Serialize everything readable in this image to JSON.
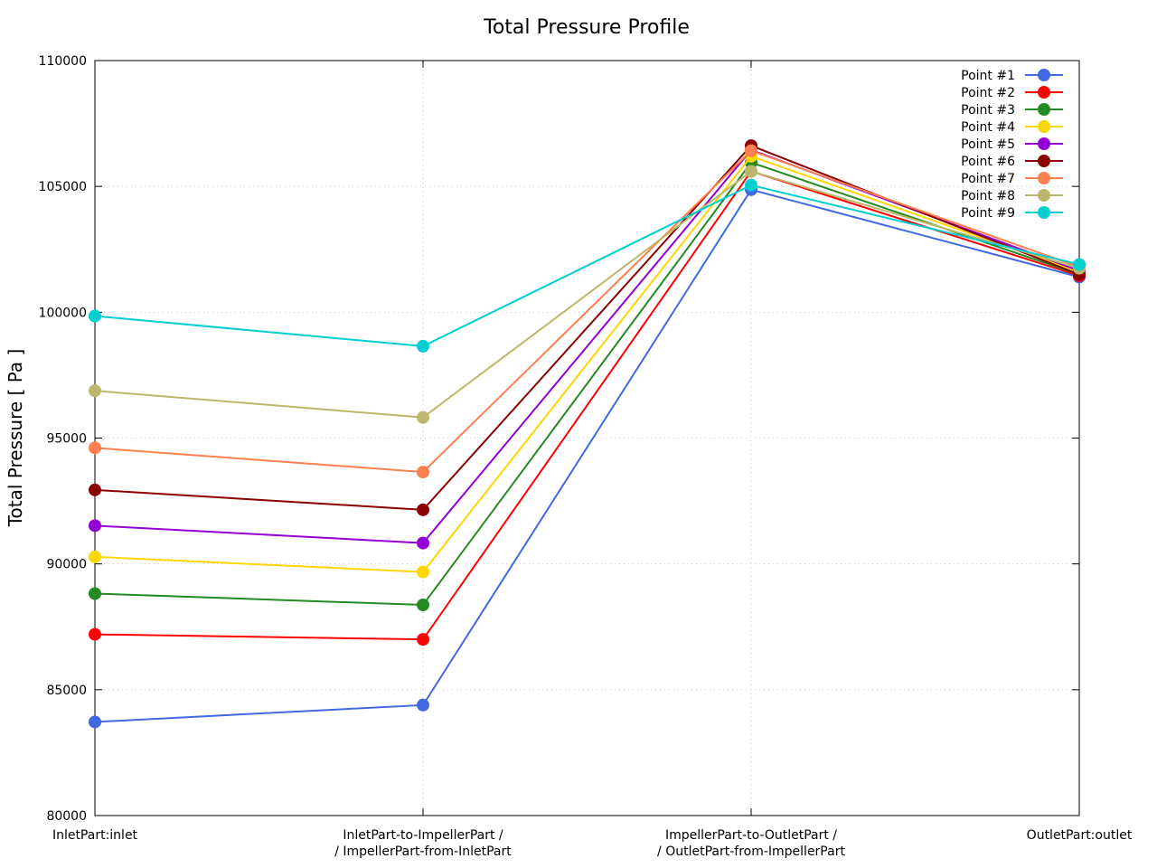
{
  "chart_data": {
    "type": "line",
    "title": "Total Pressure Profile",
    "xlabel": "",
    "ylabel": "Total Pressure [ Pa ]",
    "ylim": [
      80000,
      110000
    ],
    "yticks": [
      "80000",
      "85000",
      "90000",
      "95000",
      "100000",
      "105000",
      "110000"
    ],
    "grid": true,
    "legend_position": "top-right",
    "categories": [
      [
        "InletPart:inlet"
      ],
      [
        "InletPart-to-ImpellerPart /",
        "/ ImpellerPart-from-InletPart"
      ],
      [
        "ImpellerPart-to-OutletPart /",
        "/ OutletPart-from-ImpellerPart"
      ],
      [
        "OutletPart:outlet"
      ]
    ],
    "series": [
      {
        "name": "Point #1",
        "color": "#4169e1",
        "values": [
          83720,
          84390,
          104870,
          101400
        ]
      },
      {
        "name": "Point #2",
        "color": "#ff0000",
        "values": [
          87200,
          87000,
          105600,
          101450
        ]
      },
      {
        "name": "Point #3",
        "color": "#228b22",
        "values": [
          88820,
          88370,
          105950,
          101500
        ]
      },
      {
        "name": "Point #4",
        "color": "#ffd700",
        "values": [
          90280,
          89680,
          106200,
          101600
        ]
      },
      {
        "name": "Point #5",
        "color": "#9400d3",
        "values": [
          91520,
          90830,
          106450,
          101650
        ]
      },
      {
        "name": "Point #6",
        "color": "#8b0000",
        "values": [
          92940,
          92150,
          106620,
          101500
        ]
      },
      {
        "name": "Point #7",
        "color": "#ff7f50",
        "values": [
          94610,
          93650,
          106420,
          101800
        ]
      },
      {
        "name": "Point #8",
        "color": "#bdb76b",
        "values": [
          96880,
          95820,
          105600,
          101750
        ]
      },
      {
        "name": "Point #9",
        "color": "#00ced1",
        "values": [
          99850,
          98650,
          105050,
          101900
        ]
      }
    ]
  }
}
